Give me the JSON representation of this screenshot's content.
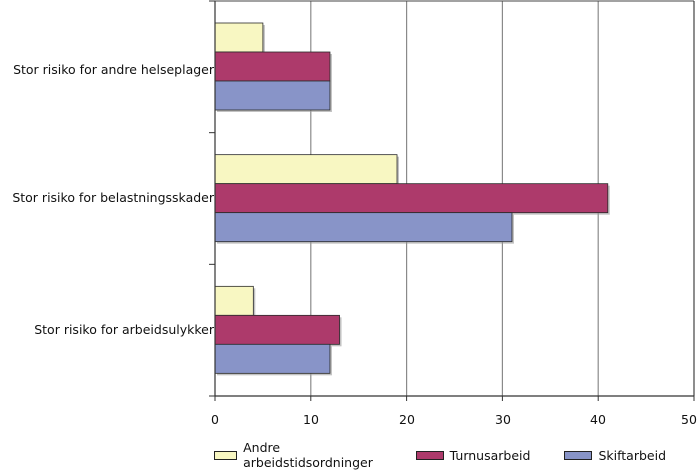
{
  "chart_data": {
    "type": "bar",
    "orientation": "horizontal",
    "title": "",
    "xlabel": "",
    "ylabel": "",
    "xlim": [
      0,
      50
    ],
    "xticks": [
      0,
      10,
      20,
      30,
      40,
      50
    ],
    "grid": true,
    "legend_position": "bottom",
    "categories": [
      "Stor risiko for andre helseplager",
      "Stor risiko for belastningsskader",
      "Stor risiko for arbeidsulykker"
    ],
    "series": [
      {
        "name": "Andre arbeidstidsordninger",
        "color": "#f8f7c2",
        "values": [
          5,
          19,
          4
        ]
      },
      {
        "name": "Turnusarbeid",
        "color": "#ad3a6b",
        "values": [
          12,
          41,
          13
        ]
      },
      {
        "name": "Skiftarbeid",
        "color": "#8894c8",
        "values": [
          12,
          31,
          12
        ]
      }
    ]
  },
  "labels": {
    "categories": [
      "Stor risiko for andre helseplager",
      "Stor risiko for belastningsskader",
      "Stor risiko for arbeidsulykker"
    ],
    "ticks": [
      "0",
      "10",
      "20",
      "30",
      "40",
      "50"
    ],
    "legend": [
      "Andre arbeidstidsordninger",
      "Turnusarbeid",
      "Skiftarbeid"
    ]
  }
}
